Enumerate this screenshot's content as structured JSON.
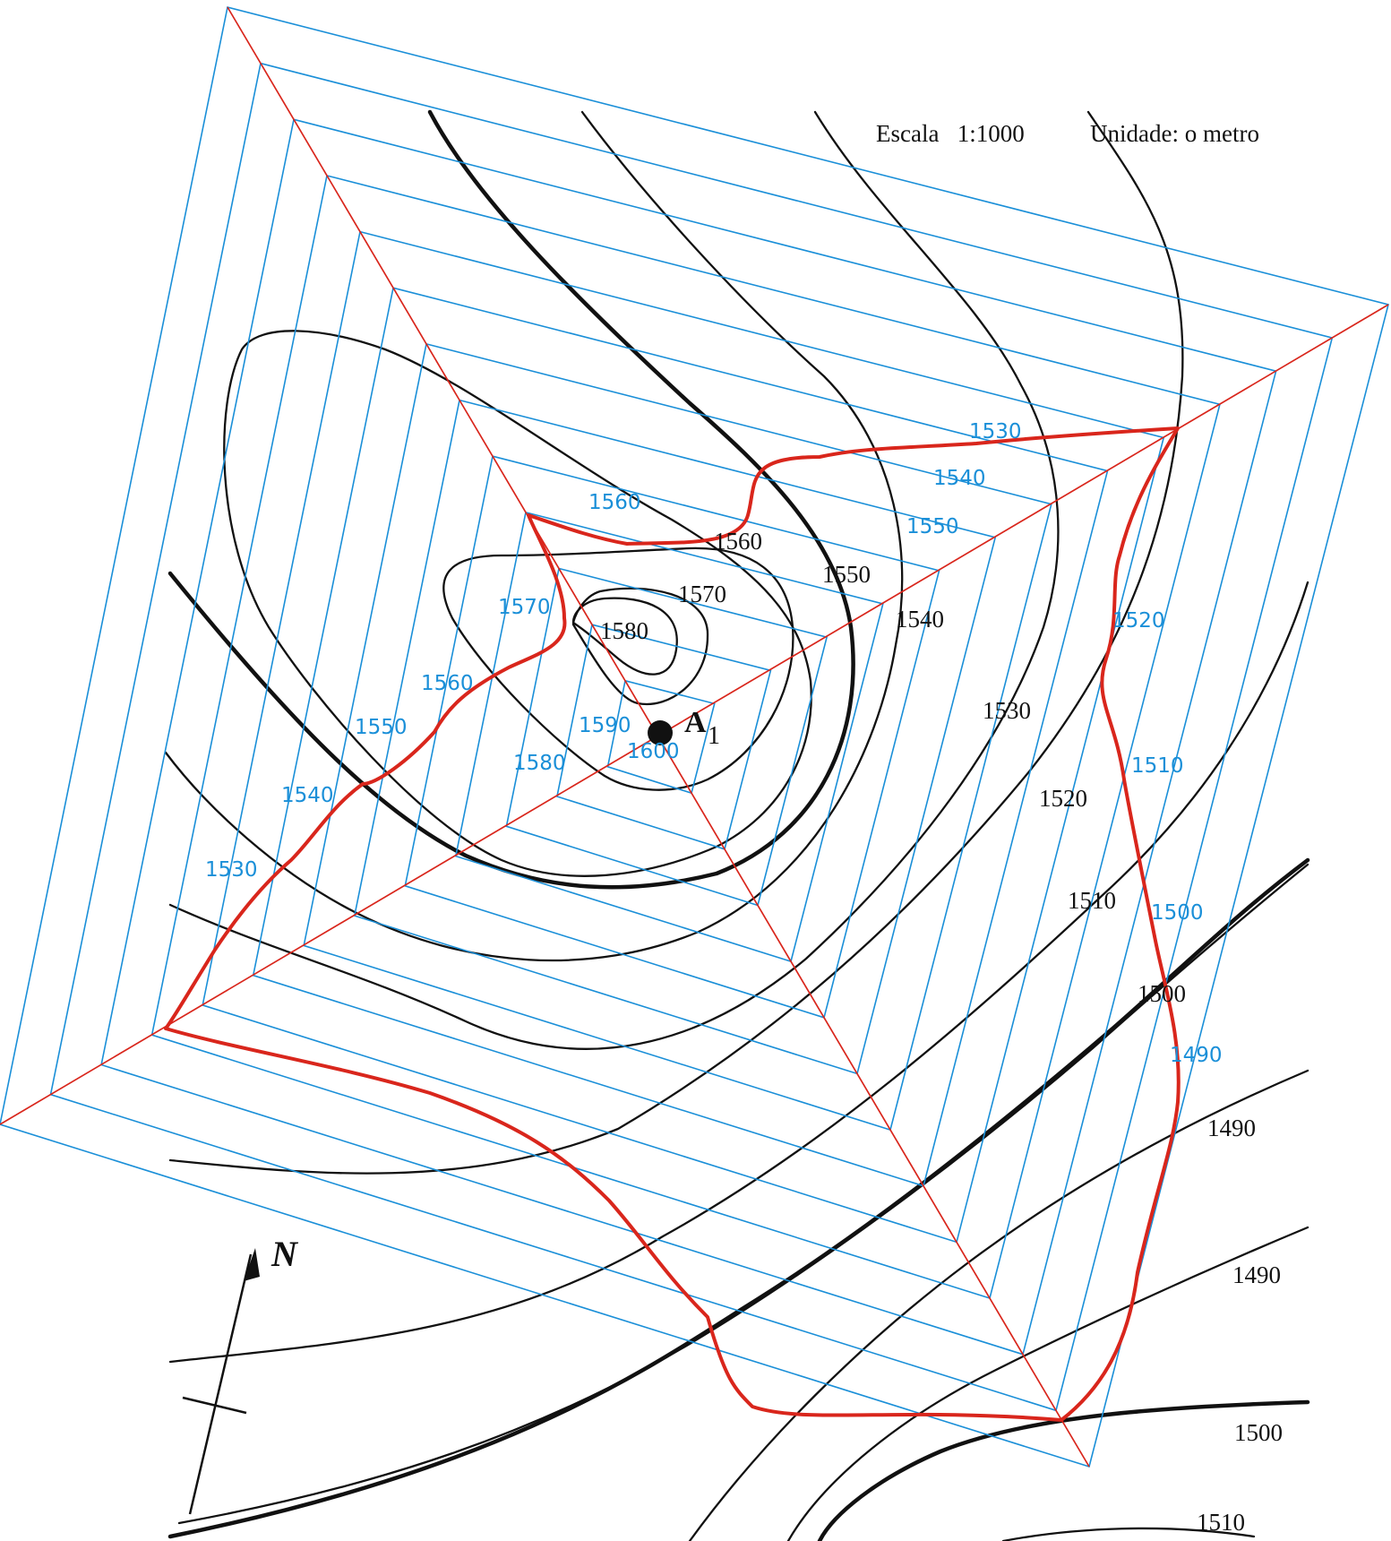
{
  "scale_text": "Escala   1:1000",
  "unit_text": "Unidade: o metro",
  "point_label": "A",
  "point_sub": "1",
  "north_label": "N",
  "map_contour_labels": [
    "1560",
    "1550",
    "1570",
    "1580",
    "1540",
    "1530",
    "1520",
    "1510",
    "1500",
    "1490",
    "1490",
    "1500",
    "1510"
  ],
  "overlay_labels": [
    "1530",
    "1540",
    "1550",
    "1560",
    "1520",
    "1570",
    "1560",
    "1550",
    "1590",
    "1600",
    "1580",
    "1540",
    "1510",
    "1530",
    "1500",
    "1490"
  ],
  "grid": {
    "square_count": 13,
    "center_elevation": 1600,
    "elevation_step": 10
  },
  "colors": {
    "grid": "#1a8fd8",
    "outline": "#d9261c",
    "contour": "#111111"
  }
}
